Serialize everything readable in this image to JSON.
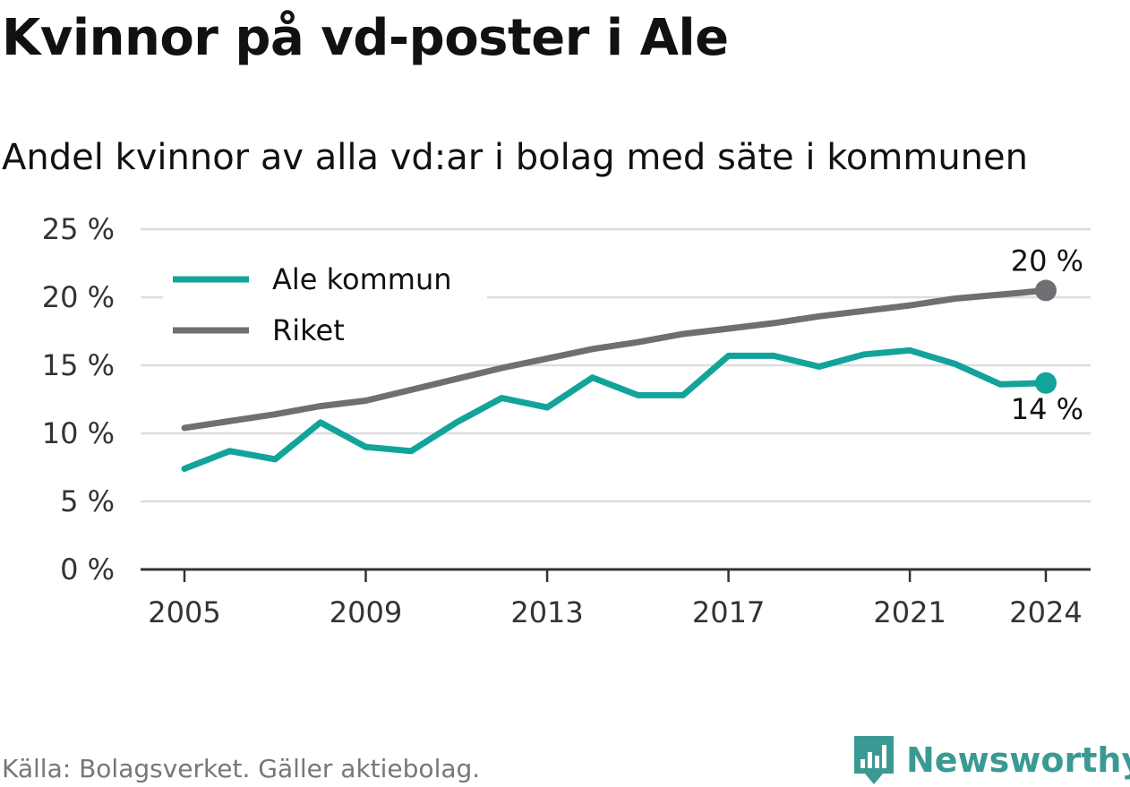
{
  "header": {
    "title": "Kvinnor på vd-poster i Ale",
    "subtitle": "Andel kvinnor av alla vd:ar i bolag med säte i kommunen"
  },
  "footer": {
    "source": "Källa: Bolagsverket. Gäller aktiebolag.",
    "brand": "Newsworthy",
    "brand_color": "#3a9a93",
    "brand_icon": "bar-chart-icon"
  },
  "chart_data": {
    "type": "line",
    "title": "Kvinnor på vd-poster i Ale",
    "subtitle": "Andel kvinnor av alla vd:ar i bolag med säte i kommunen",
    "xlabel": "",
    "ylabel": "",
    "x": [
      2005,
      2006,
      2007,
      2008,
      2009,
      2010,
      2011,
      2012,
      2013,
      2014,
      2015,
      2016,
      2017,
      2018,
      2019,
      2020,
      2021,
      2022,
      2023,
      2024
    ],
    "x_ticks": [
      2005,
      2009,
      2013,
      2017,
      2021,
      2024
    ],
    "x_tick_labels": [
      "2005",
      "2009",
      "2013",
      "2017",
      "2021",
      "2024"
    ],
    "ylim": [
      0,
      25
    ],
    "y_ticks": [
      0,
      5,
      10,
      15,
      20,
      25
    ],
    "y_tick_labels": [
      "0 %",
      "5 %",
      "10 %",
      "15 %",
      "20 %",
      "25 %"
    ],
    "grid": "horizontal",
    "legend_position": "top-left",
    "series": [
      {
        "name": "Ale kommun",
        "color": "#12a39a",
        "values": [
          7.4,
          8.7,
          8.1,
          10.8,
          9.0,
          8.7,
          10.8,
          12.6,
          11.9,
          14.1,
          12.8,
          12.8,
          15.7,
          15.7,
          14.9,
          15.8,
          16.1,
          15.1,
          13.6,
          13.7
        ],
        "end_label": "14 %"
      },
      {
        "name": "Riket",
        "color": "#6f6e73",
        "values": [
          10.4,
          10.9,
          11.4,
          12.0,
          12.4,
          13.2,
          14.0,
          14.8,
          15.5,
          16.2,
          16.7,
          17.3,
          17.7,
          18.1,
          18.6,
          19.0,
          19.4,
          19.9,
          20.2,
          20.5
        ],
        "end_label": "20 %"
      }
    ]
  }
}
